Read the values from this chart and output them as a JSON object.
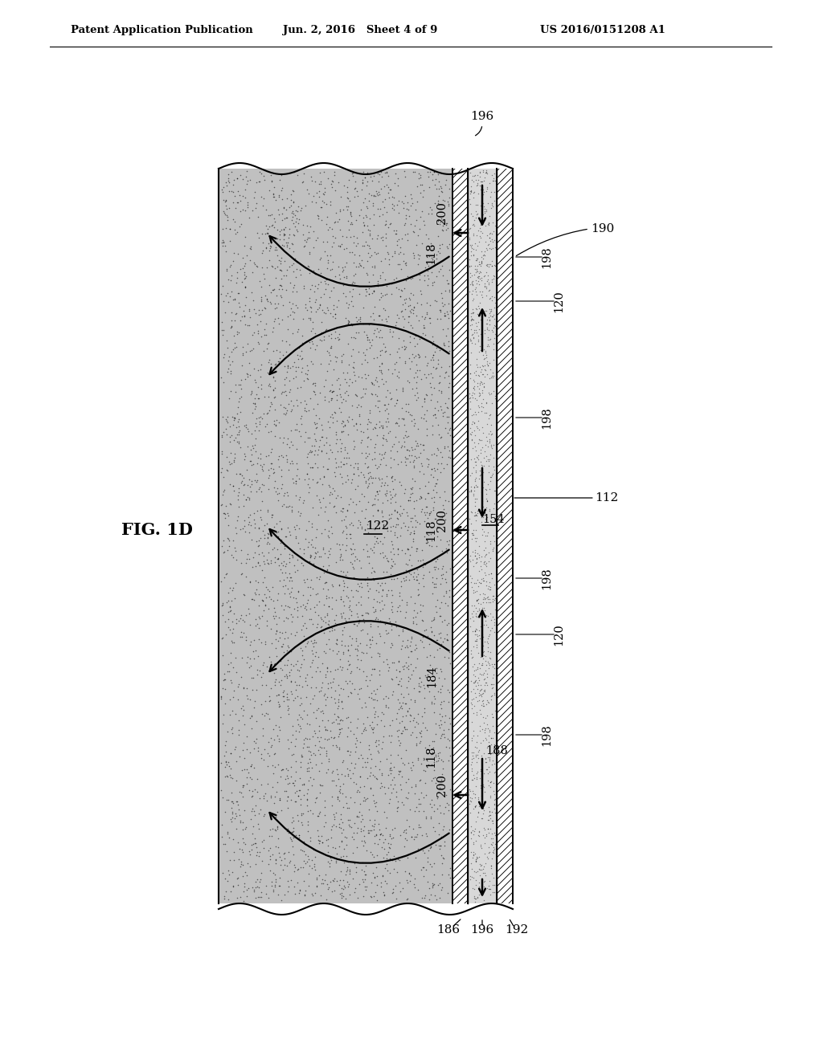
{
  "background_color": "#ffffff",
  "header_left": "Patent Application Publication",
  "header_mid": "Jun. 2, 2016   Sheet 4 of 9",
  "header_right": "US 2016/0151208 A1",
  "fig_label": "FIG. 1D",
  "foam_color": "#c0c0c0",
  "channel_color": "#d8d8d8",
  "white": "#ffffff",
  "FL": 272,
  "FR": 563,
  "FT": 1110,
  "FB": 195,
  "W1L": 563,
  "W1R": 582,
  "CHL": 582,
  "CHR": 618,
  "W2L": 618,
  "W2R": 638,
  "wave_amp": 7,
  "wave_periods": 7.0
}
